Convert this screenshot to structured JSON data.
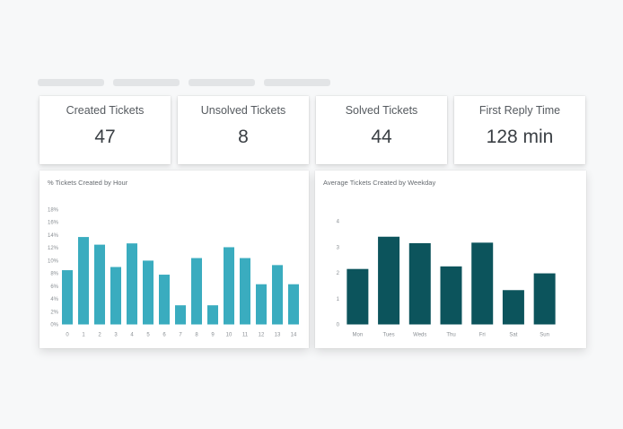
{
  "stats": [
    {
      "label": "Created Tickets",
      "value": "47"
    },
    {
      "label": "Unsolved Tickets",
      "value": "8"
    },
    {
      "label": "Solved Tickets",
      "value": "44"
    },
    {
      "label": "First Reply Time",
      "value": "128 min"
    }
  ],
  "colors": {
    "hour_bar": "#3aacbf",
    "weekday_bar": "#0c545c"
  },
  "chart_data": [
    {
      "type": "bar",
      "title": "% Tickets Created by Hour",
      "categories": [
        "0",
        "1",
        "2",
        "3",
        "4",
        "5",
        "6",
        "7",
        "8",
        "9",
        "10",
        "11",
        "12",
        "13",
        "14"
      ],
      "values": [
        8.5,
        13.7,
        12.5,
        9,
        12.7,
        10,
        7.8,
        3,
        10.4,
        3,
        12.1,
        10.4,
        6.3,
        9.3,
        6.3
      ],
      "yticks": [
        "0%",
        "2%",
        "4%",
        "6%",
        "8%",
        "10%",
        "12%",
        "14%",
        "16%",
        "18%"
      ],
      "ylim": [
        0,
        18
      ]
    },
    {
      "type": "bar",
      "title": "Average Tickets Created by Weekday",
      "categories": [
        "Mon",
        "Tues",
        "Weds",
        "Thu",
        "Fri",
        "Sat",
        "Sun"
      ],
      "values": [
        2.15,
        3.4,
        3.15,
        2.25,
        3.17,
        1.33,
        1.98
      ],
      "yticks": [
        "0",
        "1",
        "2",
        "3",
        "4"
      ],
      "ylim": [
        0,
        4
      ]
    }
  ]
}
